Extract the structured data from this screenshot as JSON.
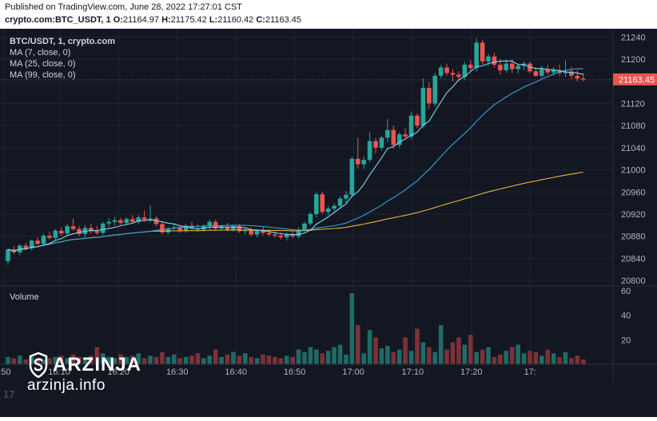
{
  "header": {
    "published": "Published on TradingView.com, June 28, 2022 17:27:01 CST",
    "symbol_prefix": "crypto.com:BTC_USDT, 1",
    "o_label": "O:",
    "o_value": "21164.97",
    "h_label": "H:",
    "h_value": "21175.42",
    "l_label": "L:",
    "l_value": "21160.42",
    "c_label": "C:",
    "c_value": "21163.45"
  },
  "legend": {
    "symbol": "BTC/USDT, 1, crypto.com",
    "ma7": "MA (7, close, 0)",
    "ma25": "MA (25, close, 0)",
    "ma99": "MA (99, close, 0)"
  },
  "volume_pane": {
    "label": "Volume"
  },
  "price_label": "21163.45",
  "watermark": {
    "brand": "ARZINJA",
    "site": "arzinja.info",
    "tv_logo": "17"
  },
  "colors": {
    "up": "#26a69a",
    "down": "#ef5350",
    "up_vol": "#1f6b66",
    "down_vol": "#7b3237",
    "ma7": "#7ed2f0",
    "ma25": "#3aa0d8",
    "ma99": "#e5b53b",
    "price_tag": "#ef5350",
    "bg": "#131722"
  },
  "chart_data": {
    "type": "candlestick",
    "symbol": "BTC/USDT",
    "interval": "1",
    "x_ticks": [
      ":50",
      "16:10",
      "16:20",
      "16:30",
      "16:40",
      "16:50",
      "17:00",
      "17:10",
      "17:20",
      "17:"
    ],
    "y_ticks": [
      21240,
      21200,
      21160,
      21120,
      21080,
      21040,
      21000,
      20960,
      20920,
      20880,
      20840,
      20800
    ],
    "ylim": [
      20790,
      21255
    ],
    "volume_ticks": [
      60,
      40,
      20
    ],
    "volume_ylim": [
      0,
      60
    ],
    "last_price": 21163.45,
    "candles": [
      [
        20835,
        20858,
        20828,
        20856
      ],
      [
        20856,
        20862,
        20848,
        20851
      ],
      [
        20851,
        20866,
        20846,
        20863
      ],
      [
        20863,
        20868,
        20855,
        20858
      ],
      [
        20858,
        20874,
        20854,
        20872
      ],
      [
        20872,
        20878,
        20864,
        20866
      ],
      [
        20866,
        20884,
        20862,
        20881
      ],
      [
        20881,
        20888,
        20874,
        20877
      ],
      [
        20877,
        20893,
        20872,
        20890
      ],
      [
        20890,
        20896,
        20880,
        20885
      ],
      [
        20885,
        20902,
        20881,
        20898
      ],
      [
        20898,
        20912,
        20890,
        20893
      ],
      [
        20893,
        20898,
        20880,
        20884
      ],
      [
        20884,
        20900,
        20878,
        20895
      ],
      [
        20895,
        20902,
        20884,
        20889
      ],
      [
        20889,
        20899,
        20882,
        20886
      ],
      [
        20886,
        20906,
        20882,
        20903
      ],
      [
        20903,
        20913,
        20896,
        20906
      ],
      [
        20906,
        20915,
        20899,
        20909
      ],
      [
        20909,
        20913,
        20900,
        20904
      ],
      [
        20904,
        20914,
        20900,
        20911
      ],
      [
        20911,
        20918,
        20903,
        20906
      ],
      [
        20906,
        20918,
        20902,
        20914
      ],
      [
        20914,
        20926,
        20906,
        20910
      ],
      [
        20910,
        20936,
        20905,
        20912
      ],
      [
        20912,
        20916,
        20898,
        20902
      ],
      [
        20902,
        20906,
        20883,
        20887
      ],
      [
        20887,
        20897,
        20883,
        20894
      ],
      [
        20894,
        20903,
        20889,
        20896
      ],
      [
        20896,
        20900,
        20886,
        20890
      ],
      [
        20890,
        20902,
        20886,
        20899
      ],
      [
        20899,
        20906,
        20890,
        20894
      ],
      [
        20894,
        20901,
        20888,
        20892
      ],
      [
        20892,
        20902,
        20888,
        20898
      ],
      [
        20898,
        20910,
        20892,
        20906
      ],
      [
        20906,
        20910,
        20891,
        20894
      ],
      [
        20894,
        20900,
        20890,
        20897
      ],
      [
        20897,
        20904,
        20889,
        20892
      ],
      [
        20892,
        20901,
        20888,
        20898
      ],
      [
        20898,
        20902,
        20886,
        20889
      ],
      [
        20889,
        20896,
        20883,
        20891
      ],
      [
        20891,
        20895,
        20880,
        20883
      ],
      [
        20883,
        20892,
        20878,
        20890
      ],
      [
        20890,
        20898,
        20882,
        20886
      ],
      [
        20886,
        20891,
        20880,
        20883
      ],
      [
        20883,
        20889,
        20877,
        20881
      ],
      [
        20881,
        20887,
        20874,
        20878
      ],
      [
        20878,
        20886,
        20872,
        20883
      ],
      [
        20883,
        20890,
        20876,
        20880
      ],
      [
        20880,
        20896,
        20876,
        20892
      ],
      [
        20892,
        20906,
        20888,
        20903
      ],
      [
        20903,
        20924,
        20899,
        20920
      ],
      [
        20920,
        20960,
        20914,
        20956
      ],
      [
        20956,
        20960,
        20920,
        20924
      ],
      [
        20924,
        20935,
        20918,
        20930
      ],
      [
        20930,
        20940,
        20925,
        20935
      ],
      [
        20935,
        20952,
        20930,
        20948
      ],
      [
        20948,
        20962,
        20940,
        20955
      ],
      [
        20955,
        21024,
        20950,
        21020
      ],
      [
        21020,
        21058,
        21002,
        21010
      ],
      [
        21010,
        21025,
        21002,
        21018
      ],
      [
        21018,
        21068,
        21014,
        21052
      ],
      [
        21052,
        21058,
        21030,
        21040
      ],
      [
        21040,
        21062,
        21035,
        21058
      ],
      [
        21058,
        21092,
        21050,
        21072
      ],
      [
        21072,
        21080,
        21038,
        21045
      ],
      [
        21045,
        21068,
        21040,
        21064
      ],
      [
        21064,
        21075,
        21055,
        21060
      ],
      [
        21060,
        21105,
        21055,
        21098
      ],
      [
        21098,
        21102,
        21075,
        21080
      ],
      [
        21080,
        21165,
        21075,
        21148
      ],
      [
        21148,
        21158,
        21110,
        21120
      ],
      [
        21120,
        21175,
        21115,
        21170
      ],
      [
        21170,
        21190,
        21165,
        21185
      ],
      [
        21185,
        21192,
        21170,
        21175
      ],
      [
        21175,
        21182,
        21160,
        21172
      ],
      [
        21172,
        21178,
        21160,
        21168
      ],
      [
        21168,
        21195,
        21162,
        21190
      ],
      [
        21190,
        21198,
        21178,
        21184
      ],
      [
        21184,
        21238,
        21178,
        21230
      ],
      [
        21230,
        21235,
        21190,
        21196
      ],
      [
        21196,
        21210,
        21188,
        21205
      ],
      [
        21205,
        21212,
        21185,
        21190
      ],
      [
        21190,
        21200,
        21172,
        21180
      ],
      [
        21180,
        21200,
        21176,
        21192
      ],
      [
        21192,
        21200,
        21175,
        21182
      ],
      [
        21182,
        21192,
        21174,
        21188
      ],
      [
        21188,
        21196,
        21180,
        21192
      ],
      [
        21192,
        21195,
        21175,
        21178
      ],
      [
        21178,
        21185,
        21168,
        21170
      ],
      [
        21170,
        21188,
        21166,
        21182
      ],
      [
        21182,
        21190,
        21172,
        21176
      ],
      [
        21176,
        21186,
        21170,
        21180
      ],
      [
        21180,
        21190,
        21170,
        21175
      ],
      [
        21175,
        21198,
        21168,
        21178
      ],
      [
        21178,
        21186,
        21164,
        21170
      ],
      [
        21170,
        21180,
        21160,
        21165
      ],
      [
        21165,
        21175,
        21160,
        21163
      ]
    ],
    "volumes": [
      6,
      5,
      7,
      4,
      6,
      5,
      4,
      5,
      6,
      7,
      5,
      8,
      6,
      5,
      7,
      14,
      9,
      6,
      5,
      8,
      6,
      7,
      9,
      5,
      7,
      6,
      10,
      6,
      8,
      5,
      6,
      7,
      9,
      5,
      7,
      12,
      6,
      8,
      10,
      7,
      9,
      6,
      5,
      8,
      7,
      6,
      5,
      7,
      6,
      12,
      10,
      14,
      12,
      9,
      11,
      14,
      16,
      8,
      58,
      32,
      9,
      28,
      22,
      13,
      15,
      10,
      12,
      22,
      11,
      29,
      18,
      14,
      10,
      32,
      12,
      18,
      22,
      16,
      24,
      10,
      12,
      14,
      6,
      8,
      11,
      14,
      16,
      9,
      11,
      10,
      7,
      12,
      9,
      6,
      10,
      5,
      7,
      4
    ]
  }
}
